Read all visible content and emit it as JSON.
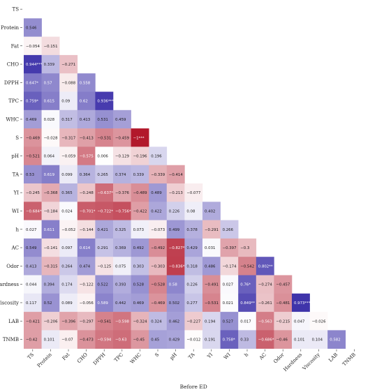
{
  "chart_data": {
    "type": "heatmap",
    "title": "",
    "xlabel": "Before ED",
    "ylabel": "",
    "variables": [
      "TS",
      "Protein",
      "Fat",
      "CHO",
      "DPPH",
      "TPC",
      "WHC",
      "S",
      "pH",
      "TA",
      "YI",
      "WI",
      "h",
      "AC",
      "Odor",
      "Hardness",
      "Viscosity",
      "LAB",
      "TNMB"
    ],
    "color_scale": {
      "min": -1,
      "max": 1,
      "negative_color": "#b2182b",
      "zero_color": "#ffffff",
      "positive_color": "#3a2ea8"
    },
    "cells": [
      {
        "row": "Protein",
        "col": "TS",
        "label": "0.546",
        "value": 0.546
      },
      {
        "row": "Fat",
        "col": "TS",
        "label": "−0.054",
        "value": -0.054
      },
      {
        "row": "Fat",
        "col": "Protein",
        "label": "−0.151",
        "value": -0.151
      },
      {
        "row": "CHO",
        "col": "TS",
        "label": "0.944***",
        "value": 0.944
      },
      {
        "row": "CHO",
        "col": "Protein",
        "label": "0.339",
        "value": 0.339
      },
      {
        "row": "CHO",
        "col": "Fat",
        "label": "−0.271",
        "value": -0.271
      },
      {
        "row": "DPPH",
        "col": "TS",
        "label": "0.647*",
        "value": 0.647
      },
      {
        "row": "DPPH",
        "col": "Protein",
        "label": "0.57",
        "value": 0.57
      },
      {
        "row": "DPPH",
        "col": "Fat",
        "label": "−0.088",
        "value": -0.088
      },
      {
        "row": "DPPH",
        "col": "CHO",
        "label": "0.558",
        "value": 0.558
      },
      {
        "row": "TPC",
        "col": "TS",
        "label": "0.759*",
        "value": 0.759
      },
      {
        "row": "TPC",
        "col": "Protein",
        "label": "0.615",
        "value": 0.615
      },
      {
        "row": "TPC",
        "col": "Fat",
        "label": "0.09",
        "value": 0.09
      },
      {
        "row": "TPC",
        "col": "CHO",
        "label": "0.62",
        "value": 0.62
      },
      {
        "row": "TPC",
        "col": "DPPH",
        "label": "0.936***",
        "value": 0.936
      },
      {
        "row": "WHC",
        "col": "TS",
        "label": "0.469",
        "value": 0.469
      },
      {
        "row": "WHC",
        "col": "Protein",
        "label": "0.028",
        "value": 0.028
      },
      {
        "row": "WHC",
        "col": "Fat",
        "label": "0.317",
        "value": 0.317
      },
      {
        "row": "WHC",
        "col": "CHO",
        "label": "0.413",
        "value": 0.413
      },
      {
        "row": "WHC",
        "col": "DPPH",
        "label": "0.531",
        "value": 0.531
      },
      {
        "row": "WHC",
        "col": "TPC",
        "label": "0.459",
        "value": 0.459
      },
      {
        "row": "S",
        "col": "TS",
        "label": "−0.469",
        "value": -0.469
      },
      {
        "row": "S",
        "col": "Protein",
        "label": "−0.028",
        "value": -0.028
      },
      {
        "row": "S",
        "col": "Fat",
        "label": "−0.317",
        "value": -0.317
      },
      {
        "row": "S",
        "col": "CHO",
        "label": "−0.413",
        "value": -0.413
      },
      {
        "row": "S",
        "col": "DPPH",
        "label": "−0.531",
        "value": -0.531
      },
      {
        "row": "S",
        "col": "TPC",
        "label": "−0.459",
        "value": -0.459
      },
      {
        "row": "S",
        "col": "WHC",
        "label": "−1***",
        "value": -1
      },
      {
        "row": "pH",
        "col": "TS",
        "label": "−0.521",
        "value": -0.521
      },
      {
        "row": "pH",
        "col": "Protein",
        "label": "0.064",
        "value": 0.064
      },
      {
        "row": "pH",
        "col": "Fat",
        "label": "−0.059",
        "value": -0.059
      },
      {
        "row": "pH",
        "col": "CHO",
        "label": "−0.575",
        "value": -0.575
      },
      {
        "row": "pH",
        "col": "DPPH",
        "label": "0.006",
        "value": 0.006
      },
      {
        "row": "pH",
        "col": "TPC",
        "label": "−0.129",
        "value": -0.129
      },
      {
        "row": "pH",
        "col": "WHC",
        "label": "−0.196",
        "value": -0.196
      },
      {
        "row": "pH",
        "col": "S",
        "label": "0.196",
        "value": 0.196
      },
      {
        "row": "TA",
        "col": "TS",
        "label": "0.53",
        "value": 0.53
      },
      {
        "row": "TA",
        "col": "Protein",
        "label": "0.619",
        "value": 0.619
      },
      {
        "row": "TA",
        "col": "Fat",
        "label": "0.099",
        "value": 0.099
      },
      {
        "row": "TA",
        "col": "CHO",
        "label": "0.364",
        "value": 0.364
      },
      {
        "row": "TA",
        "col": "DPPH",
        "label": "0.265",
        "value": 0.265
      },
      {
        "row": "TA",
        "col": "TPC",
        "label": "0.374",
        "value": 0.374
      },
      {
        "row": "TA",
        "col": "WHC",
        "label": "0.339",
        "value": 0.339
      },
      {
        "row": "TA",
        "col": "S",
        "label": "−0.339",
        "value": -0.339
      },
      {
        "row": "TA",
        "col": "pH",
        "label": "−0.414",
        "value": -0.414
      },
      {
        "row": "YI",
        "col": "TS",
        "label": "−0.245",
        "value": -0.245
      },
      {
        "row": "YI",
        "col": "Protein",
        "label": "−0.368",
        "value": -0.368
      },
      {
        "row": "YI",
        "col": "Fat",
        "label": "0.365",
        "value": 0.365
      },
      {
        "row": "YI",
        "col": "CHO",
        "label": "−0.248",
        "value": -0.248
      },
      {
        "row": "YI",
        "col": "DPPH",
        "label": "−0.637*",
        "value": -0.637
      },
      {
        "row": "YI",
        "col": "TPC",
        "label": "−0.376",
        "value": -0.376
      },
      {
        "row": "YI",
        "col": "WHC",
        "label": "−0.489",
        "value": -0.489
      },
      {
        "row": "YI",
        "col": "S",
        "label": "0.489",
        "value": 0.489
      },
      {
        "row": "YI",
        "col": "pH",
        "label": "−0.213",
        "value": -0.213
      },
      {
        "row": "YI",
        "col": "TA",
        "label": "−0.077",
        "value": -0.077
      },
      {
        "row": "WI",
        "col": "TS",
        "label": "−0.684*",
        "value": -0.684
      },
      {
        "row": "WI",
        "col": "Protein",
        "label": "−0.184",
        "value": -0.184
      },
      {
        "row": "WI",
        "col": "Fat",
        "label": "0.024",
        "value": 0.024
      },
      {
        "row": "WI",
        "col": "CHO",
        "label": "−0.701*",
        "value": -0.701
      },
      {
        "row": "WI",
        "col": "DPPH",
        "label": "−0.722*",
        "value": -0.722
      },
      {
        "row": "WI",
        "col": "TPC",
        "label": "−0.756*",
        "value": -0.756
      },
      {
        "row": "WI",
        "col": "WHC",
        "label": "−0.422",
        "value": -0.422
      },
      {
        "row": "WI",
        "col": "S",
        "label": "0.422",
        "value": 0.422
      },
      {
        "row": "WI",
        "col": "pH",
        "label": "0.226",
        "value": 0.226
      },
      {
        "row": "WI",
        "col": "TA",
        "label": "0.08",
        "value": 0.08
      },
      {
        "row": "WI",
        "col": "YI",
        "label": "0.402",
        "value": 0.402
      },
      {
        "row": "h",
        "col": "TS",
        "label": "0.027",
        "value": 0.027
      },
      {
        "row": "h",
        "col": "Protein",
        "label": "0.611",
        "value": 0.611
      },
      {
        "row": "h",
        "col": "Fat",
        "label": "−0.052",
        "value": -0.052
      },
      {
        "row": "h",
        "col": "CHO",
        "label": "−0.144",
        "value": -0.144
      },
      {
        "row": "h",
        "col": "DPPH",
        "label": "0.421",
        "value": 0.421
      },
      {
        "row": "h",
        "col": "TPC",
        "label": "0.325",
        "value": 0.325
      },
      {
        "row": "h",
        "col": "WHC",
        "label": "0.073",
        "value": 0.073
      },
      {
        "row": "h",
        "col": "S",
        "label": "−0.073",
        "value": -0.073
      },
      {
        "row": "h",
        "col": "pH",
        "label": "0.499",
        "value": 0.499
      },
      {
        "row": "h",
        "col": "TA",
        "label": "0.378",
        "value": 0.378
      },
      {
        "row": "h",
        "col": "YI",
        "label": "−0.291",
        "value": -0.291
      },
      {
        "row": "h",
        "col": "WI",
        "label": "0.266",
        "value": 0.266
      },
      {
        "row": "AC",
        "col": "TS",
        "label": "0.549",
        "value": 0.549
      },
      {
        "row": "AC",
        "col": "Protein",
        "label": "−0.141",
        "value": -0.141
      },
      {
        "row": "AC",
        "col": "Fat",
        "label": "0.097",
        "value": 0.097
      },
      {
        "row": "AC",
        "col": "CHO",
        "label": "0.614",
        "value": 0.614
      },
      {
        "row": "AC",
        "col": "DPPH",
        "label": "0.291",
        "value": 0.291
      },
      {
        "row": "AC",
        "col": "TPC",
        "label": "0.369",
        "value": 0.369
      },
      {
        "row": "AC",
        "col": "WHC",
        "label": "0.492",
        "value": 0.492
      },
      {
        "row": "AC",
        "col": "S",
        "label": "−0.492",
        "value": -0.492
      },
      {
        "row": "AC",
        "col": "pH",
        "label": "−0.827**",
        "value": -0.827
      },
      {
        "row": "AC",
        "col": "TA",
        "label": "0.429",
        "value": 0.429
      },
      {
        "row": "AC",
        "col": "YI",
        "label": "0.031",
        "value": 0.031
      },
      {
        "row": "AC",
        "col": "WI",
        "label": "−0.397",
        "value": -0.397
      },
      {
        "row": "AC",
        "col": "h",
        "label": "−0.3",
        "value": -0.3
      },
      {
        "row": "Odor",
        "col": "TS",
        "label": "0.413",
        "value": 0.413
      },
      {
        "row": "Odor",
        "col": "Protein",
        "label": "−0.315",
        "value": -0.315
      },
      {
        "row": "Odor",
        "col": "Fat",
        "label": "0.264",
        "value": 0.264
      },
      {
        "row": "Odor",
        "col": "CHO",
        "label": "0.474",
        "value": 0.474
      },
      {
        "row": "Odor",
        "col": "DPPH",
        "label": "−0.125",
        "value": -0.125
      },
      {
        "row": "Odor",
        "col": "TPC",
        "label": "0.075",
        "value": 0.075
      },
      {
        "row": "Odor",
        "col": "WHC",
        "label": "0.303",
        "value": 0.303
      },
      {
        "row": "Odor",
        "col": "S",
        "label": "−0.303",
        "value": -0.303
      },
      {
        "row": "Odor",
        "col": "pH",
        "label": "−0.836**",
        "value": -0.836
      },
      {
        "row": "Odor",
        "col": "TA",
        "label": "0.318",
        "value": 0.318
      },
      {
        "row": "Odor",
        "col": "YI",
        "label": "0.486",
        "value": 0.486
      },
      {
        "row": "Odor",
        "col": "WI",
        "label": "−0.174",
        "value": -0.174
      },
      {
        "row": "Odor",
        "col": "h",
        "label": "−0.542",
        "value": -0.542
      },
      {
        "row": "Odor",
        "col": "AC",
        "label": "0.802**",
        "value": 0.802
      },
      {
        "row": "Hardness",
        "col": "TS",
        "label": "0.044",
        "value": 0.044
      },
      {
        "row": "Hardness",
        "col": "Protein",
        "label": "0.394",
        "value": 0.394
      },
      {
        "row": "Hardness",
        "col": "Fat",
        "label": "0.174",
        "value": 0.174
      },
      {
        "row": "Hardness",
        "col": "CHO",
        "label": "−0.122",
        "value": -0.122
      },
      {
        "row": "Hardness",
        "col": "DPPH",
        "label": "0.522",
        "value": 0.522
      },
      {
        "row": "Hardness",
        "col": "TPC",
        "label": "0.393",
        "value": 0.393
      },
      {
        "row": "Hardness",
        "col": "WHC",
        "label": "0.528",
        "value": 0.528
      },
      {
        "row": "Hardness",
        "col": "S",
        "label": "−0.528",
        "value": -0.528
      },
      {
        "row": "Hardness",
        "col": "pH",
        "label": "0.58",
        "value": 0.58
      },
      {
        "row": "Hardness",
        "col": "TA",
        "label": "0.226",
        "value": 0.226
      },
      {
        "row": "Hardness",
        "col": "YI",
        "label": "−0.491",
        "value": -0.491
      },
      {
        "row": "Hardness",
        "col": "WI",
        "label": "0.027",
        "value": 0.027
      },
      {
        "row": "Hardness",
        "col": "h",
        "label": "0.76*",
        "value": 0.76
      },
      {
        "row": "Hardness",
        "col": "AC",
        "label": "−0.274",
        "value": -0.274
      },
      {
        "row": "Hardness",
        "col": "Odor",
        "label": "−0.457",
        "value": -0.457
      },
      {
        "row": "Viscosity",
        "col": "TS",
        "label": "0.117",
        "value": 0.117
      },
      {
        "row": "Viscosity",
        "col": "Protein",
        "label": "0.52",
        "value": 0.52
      },
      {
        "row": "Viscosity",
        "col": "Fat",
        "label": "0.089",
        "value": 0.089
      },
      {
        "row": "Viscosity",
        "col": "CHO",
        "label": "−0.056",
        "value": -0.056
      },
      {
        "row": "Viscosity",
        "col": "DPPH",
        "label": "0.589",
        "value": 0.589
      },
      {
        "row": "Viscosity",
        "col": "TPC",
        "label": "0.442",
        "value": 0.442
      },
      {
        "row": "Viscosity",
        "col": "WHC",
        "label": "0.469",
        "value": 0.469
      },
      {
        "row": "Viscosity",
        "col": "S",
        "label": "−0.469",
        "value": -0.469
      },
      {
        "row": "Viscosity",
        "col": "pH",
        "label": "0.502",
        "value": 0.502
      },
      {
        "row": "Viscosity",
        "col": "TA",
        "label": "0.277",
        "value": 0.277
      },
      {
        "row": "Viscosity",
        "col": "YI",
        "label": "−0.531",
        "value": -0.531
      },
      {
        "row": "Viscosity",
        "col": "WI",
        "label": "0.021",
        "value": 0.021
      },
      {
        "row": "Viscosity",
        "col": "h",
        "label": "0.849**",
        "value": 0.849
      },
      {
        "row": "Viscosity",
        "col": "AC",
        "label": "−0.261",
        "value": -0.261
      },
      {
        "row": "Viscosity",
        "col": "Odor",
        "label": "−0.481",
        "value": -0.481
      },
      {
        "row": "Viscosity",
        "col": "Hardness",
        "label": "0.973***",
        "value": 0.973
      },
      {
        "row": "LAB",
        "col": "TS",
        "label": "−0.421",
        "value": -0.421
      },
      {
        "row": "LAB",
        "col": "Protein",
        "label": "−0.206",
        "value": -0.206
      },
      {
        "row": "LAB",
        "col": "Fat",
        "label": "−0.396",
        "value": -0.396
      },
      {
        "row": "LAB",
        "col": "CHO",
        "label": "−0.297",
        "value": -0.297
      },
      {
        "row": "LAB",
        "col": "DPPH",
        "label": "−0.541",
        "value": -0.541
      },
      {
        "row": "LAB",
        "col": "TPC",
        "label": "−0.598",
        "value": -0.598
      },
      {
        "row": "LAB",
        "col": "WHC",
        "label": "−0.324",
        "value": -0.324
      },
      {
        "row": "LAB",
        "col": "S",
        "label": "0.324",
        "value": 0.324
      },
      {
        "row": "LAB",
        "col": "pH",
        "label": "0.462",
        "value": 0.462
      },
      {
        "row": "LAB",
        "col": "TA",
        "label": "−0.227",
        "value": -0.227
      },
      {
        "row": "LAB",
        "col": "YI",
        "label": "0.194",
        "value": 0.194
      },
      {
        "row": "LAB",
        "col": "WI",
        "label": "0.527",
        "value": 0.527
      },
      {
        "row": "LAB",
        "col": "h",
        "label": "0.017",
        "value": 0.017
      },
      {
        "row": "LAB",
        "col": "AC",
        "label": "−0.563",
        "value": -0.563
      },
      {
        "row": "LAB",
        "col": "Odor",
        "label": "−0.215",
        "value": -0.215
      },
      {
        "row": "LAB",
        "col": "Hardness",
        "label": "0.047",
        "value": 0.047
      },
      {
        "row": "LAB",
        "col": "Viscosity",
        "label": "−0.026",
        "value": -0.026
      },
      {
        "row": "TNMB",
        "col": "TS",
        "label": "−0.42",
        "value": -0.42
      },
      {
        "row": "TNMB",
        "col": "Protein",
        "label": "0.101",
        "value": 0.101
      },
      {
        "row": "TNMB",
        "col": "Fat",
        "label": "−0.07",
        "value": -0.07
      },
      {
        "row": "TNMB",
        "col": "CHO",
        "label": "−0.473",
        "value": -0.473
      },
      {
        "row": "TNMB",
        "col": "DPPH",
        "label": "−0.594",
        "value": -0.594
      },
      {
        "row": "TNMB",
        "col": "TPC",
        "label": "−0.63",
        "value": -0.63
      },
      {
        "row": "TNMB",
        "col": "WHC",
        "label": "−0.45",
        "value": -0.45
      },
      {
        "row": "TNMB",
        "col": "S",
        "label": "0.45",
        "value": 0.45
      },
      {
        "row": "TNMB",
        "col": "pH",
        "label": "0.429",
        "value": 0.429
      },
      {
        "row": "TNMB",
        "col": "TA",
        "label": "−0.012",
        "value": -0.012
      },
      {
        "row": "TNMB",
        "col": "YI",
        "label": "0.191",
        "value": 0.191
      },
      {
        "row": "TNMB",
        "col": "WI",
        "label": "0.758*",
        "value": 0.758
      },
      {
        "row": "TNMB",
        "col": "h",
        "label": "0.33",
        "value": 0.33
      },
      {
        "row": "TNMB",
        "col": "AC",
        "label": "−0.686*",
        "value": -0.686
      },
      {
        "row": "TNMB",
        "col": "Odor",
        "label": "−0.46",
        "value": -0.46
      },
      {
        "row": "TNMB",
        "col": "Hardness",
        "label": "0.101",
        "value": 0.101
      },
      {
        "row": "TNMB",
        "col": "Viscosity",
        "label": "0.104",
        "value": 0.104
      },
      {
        "row": "TNMB",
        "col": "LAB",
        "label": "0.582",
        "value": 0.582
      }
    ]
  }
}
